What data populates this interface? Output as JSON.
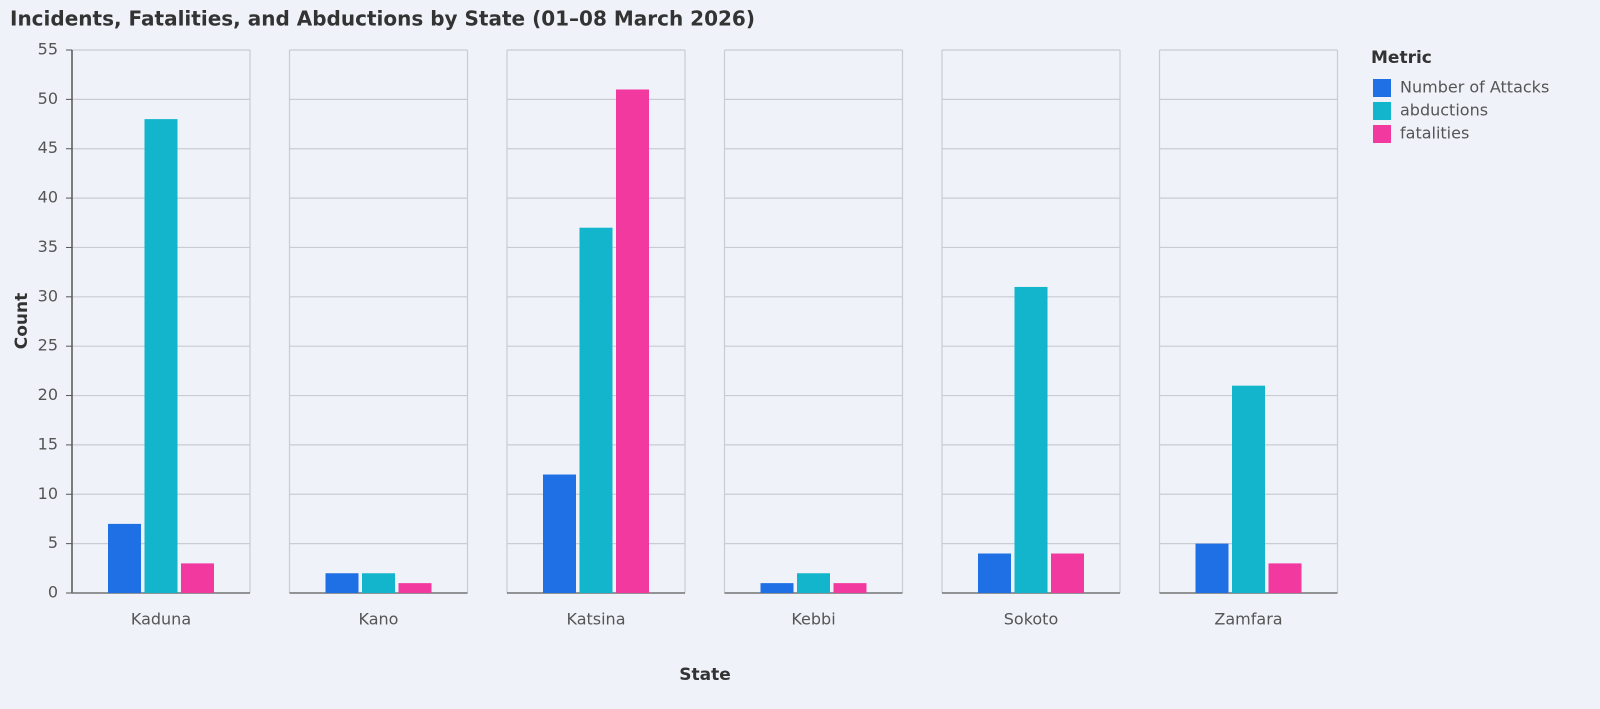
{
  "chart_data": {
    "type": "bar",
    "title": "Incidents, Fatalities, and Abductions by State (01–08 March 2026)",
    "x_label": "State",
    "y_label": "Count",
    "categories": [
      "Kaduna",
      "Kano",
      "Katsina",
      "Kebbi",
      "Sokoto",
      "Zamfara"
    ],
    "series": [
      {
        "name": "Number of Attacks",
        "color": "#1f6fe5",
        "values": [
          7,
          2,
          12,
          1,
          4,
          5
        ]
      },
      {
        "name": "abductions",
        "color": "#12b5cb",
        "values": [
          48,
          2,
          37,
          2,
          31,
          21
        ]
      },
      {
        "name": "fatalities",
        "color": "#f2399f",
        "values": [
          3,
          1,
          51,
          1,
          4,
          3
        ]
      }
    ],
    "legend_title": "Metric",
    "ylim": [
      0,
      55
    ],
    "yticks": [
      0,
      5,
      10,
      15,
      20,
      25,
      30,
      35,
      40,
      45,
      50,
      55
    ],
    "grid": true
  }
}
